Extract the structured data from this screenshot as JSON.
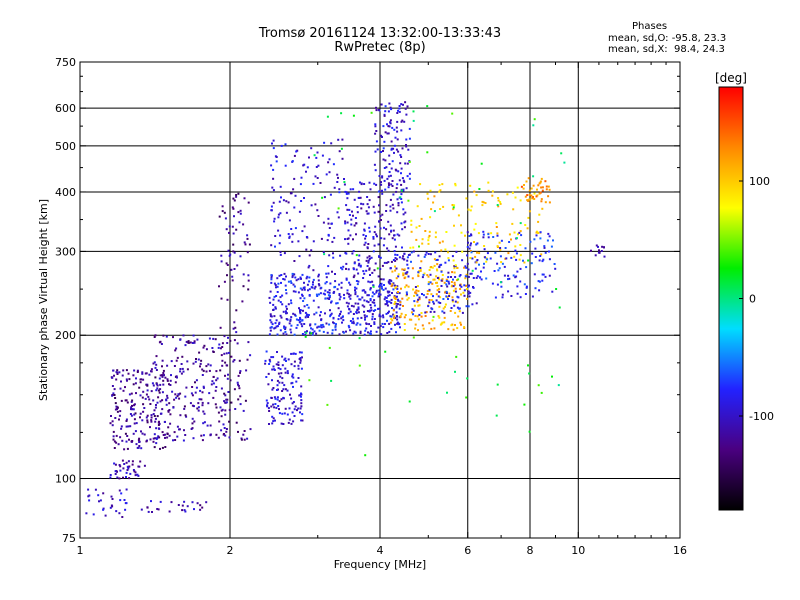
{
  "header": {
    "title": "Tromsø 20161124 13:32:00-13:33:43",
    "subtitle": "RwPretec (8p)",
    "phase_heading": "Phases",
    "phase_o": "mean, sd,O: -95.8, 23.3",
    "phase_x": "mean, sd,X:  98.4, 24.3"
  },
  "chart_data": {
    "type": "scatter",
    "title": "Tromsø 20161124 13:32:00-13:33:43",
    "subtitle": "RwPretec (8p)",
    "xlabel": "Frequency [MHz]",
    "ylabel": "Stationary phase Virtual Height [km]",
    "xscale": "log",
    "yscale": "log",
    "xlim": [
      1,
      16
    ],
    "ylim": [
      75,
      750
    ],
    "x_ticks": [
      1,
      2,
      4,
      6,
      8,
      10,
      16
    ],
    "y_ticks": [
      75,
      100,
      200,
      300,
      400,
      500,
      600,
      750
    ],
    "x_gridlines": [
      2,
      4,
      6,
      8,
      10
    ],
    "y_gridlines": [
      100,
      200,
      300,
      400,
      500,
      600
    ],
    "grid": true,
    "colorbar": {
      "label": "[deg]",
      "range": [
        -180,
        180
      ],
      "ticks": [
        100,
        0,
        -100
      ],
      "colors": [
        "#000000",
        "#4a0080",
        "#2222ff",
        "#00ddff",
        "#00ee00",
        "#ffff00",
        "#ff8800",
        "#ff0000"
      ]
    },
    "point_clusters": [
      {
        "x_range": [
          1.02,
          1.25
        ],
        "y_range": [
          83,
          95
        ],
        "phase": -100,
        "n": 30
      },
      {
        "x_range": [
          1.28,
          1.8
        ],
        "y_range": [
          84,
          90
        ],
        "phase": -110,
        "n": 25
      },
      {
        "x_range": [
          1.15,
          1.35
        ],
        "y_range": [
          100,
          110
        ],
        "phase": -110,
        "n": 40
      },
      {
        "x_range": [
          1.15,
          1.5
        ],
        "y_range": [
          115,
          170
        ],
        "phase": -120,
        "n": 220
      },
      {
        "x_range": [
          1.4,
          2.0
        ],
        "y_range": [
          120,
          200
        ],
        "phase": -115,
        "n": 220
      },
      {
        "x_range": [
          1.9,
          2.2
        ],
        "y_range": [
          120,
          400
        ],
        "phase": -120,
        "n": 120
      },
      {
        "x_range": [
          2.35,
          2.8
        ],
        "y_range": [
          130,
          185
        ],
        "phase": -95,
        "n": 140
      },
      {
        "x_range": [
          2.4,
          3.3
        ],
        "y_range": [
          200,
          270
        ],
        "phase": -85,
        "n": 260
      },
      {
        "x_range": [
          2.4,
          3.4
        ],
        "y_range": [
          270,
          520
        ],
        "phase": -95,
        "n": 140
      },
      {
        "x_range": [
          3.3,
          4.4
        ],
        "y_range": [
          200,
          260
        ],
        "phase": -90,
        "n": 240
      },
      {
        "x_range": [
          3.4,
          4.5
        ],
        "y_range": [
          260,
          420
        ],
        "phase": -100,
        "n": 220
      },
      {
        "x_range": [
          3.9,
          4.6
        ],
        "y_range": [
          400,
          620
        ],
        "phase": -95,
        "n": 120
      },
      {
        "x_range": [
          4.2,
          6.0
        ],
        "y_range": [
          205,
          280
        ],
        "phase": 110,
        "n": 180
      },
      {
        "x_range": [
          4.5,
          6.3
        ],
        "y_range": [
          220,
          300
        ],
        "phase": -85,
        "n": 140
      },
      {
        "x_range": [
          4.6,
          8.5
        ],
        "y_range": [
          280,
          420
        ],
        "phase": 100,
        "n": 140
      },
      {
        "x_range": [
          6.0,
          9.0
        ],
        "y_range": [
          240,
          330
        ],
        "phase": -80,
        "n": 120
      },
      {
        "x_range": [
          7.7,
          8.8
        ],
        "y_range": [
          380,
          430
        ],
        "phase": 130,
        "n": 40
      },
      {
        "x_range": [
          10.6,
          11.3
        ],
        "y_range": [
          292,
          310
        ],
        "phase": -110,
        "n": 12
      },
      {
        "x_range": [
          2.8,
          9.5
        ],
        "y_range": [
          110,
          620
        ],
        "phase": 20,
        "n": 70
      }
    ]
  }
}
